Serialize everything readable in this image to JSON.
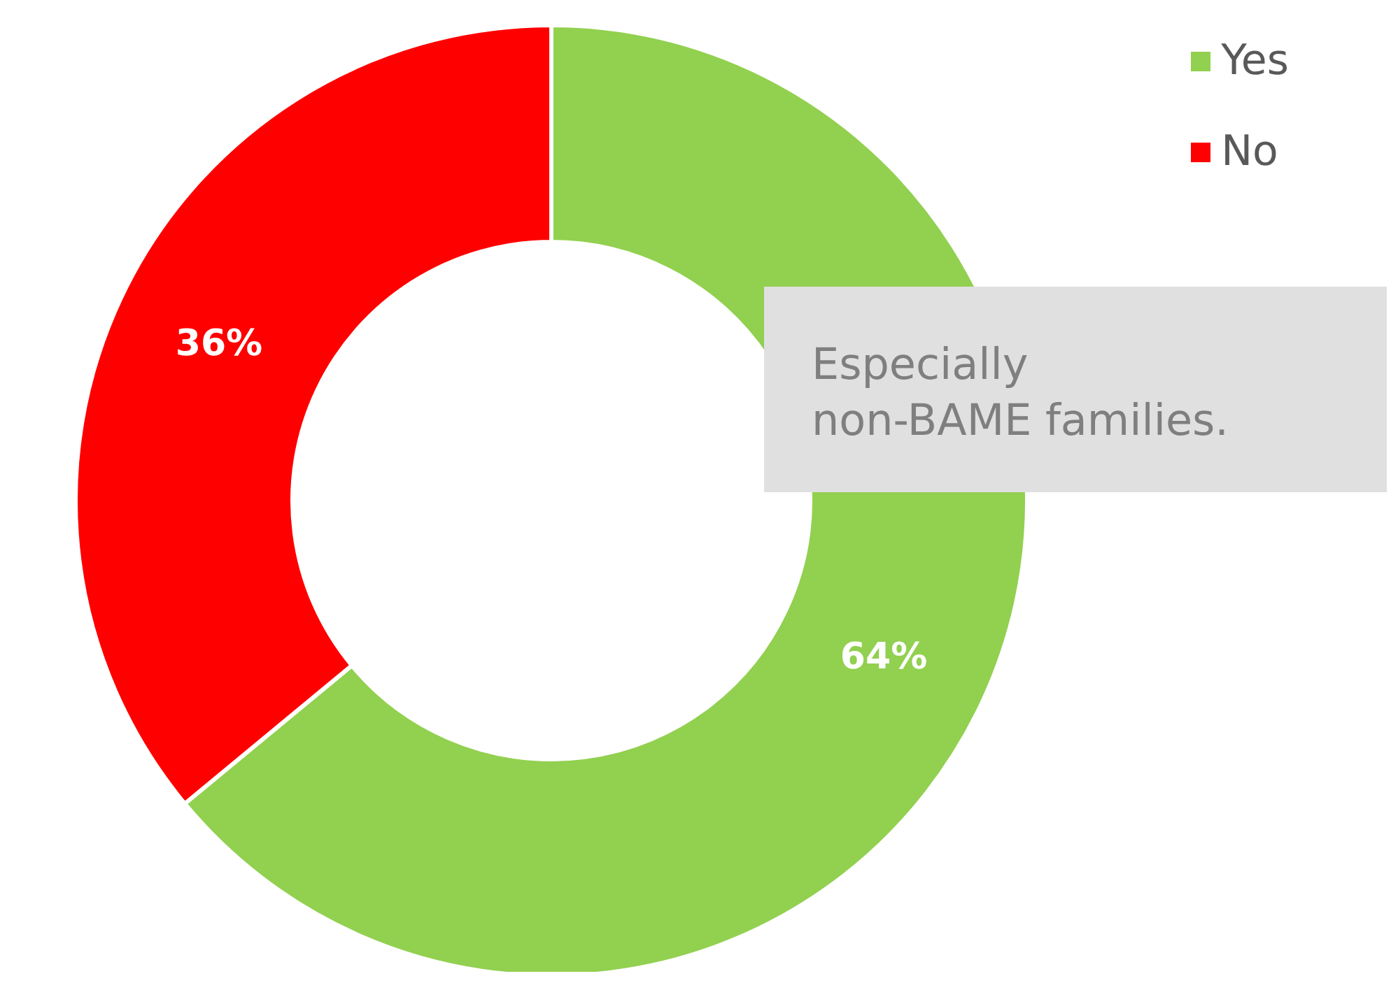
{
  "chart_data": {
    "type": "donut",
    "categories": [
      "Yes",
      "No"
    ],
    "values": [
      64,
      36
    ],
    "colors": [
      "#92d050",
      "#ff0000"
    ],
    "value_labels": [
      "64%",
      "36%"
    ],
    "legend": "top right",
    "annotations": [
      "Especially\nnon-BAME families."
    ]
  }
}
